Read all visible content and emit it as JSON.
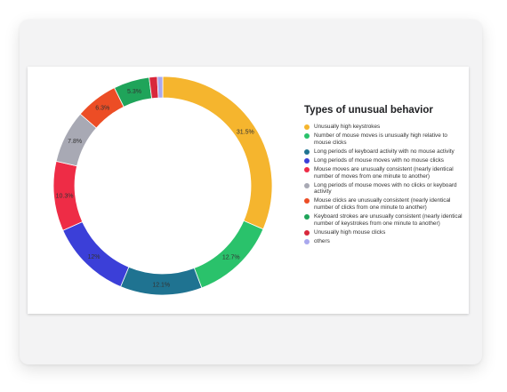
{
  "chart_data": {
    "type": "pie",
    "title": "Types of unusual behavior",
    "legend_position": "right",
    "series": [
      {
        "name": "Unusually high keystrokes",
        "value": 31.5,
        "label": "31.5%",
        "color": "#f5b52e"
      },
      {
        "name": "Number of mouse moves is unusually high relative to mouse clicks",
        "value": 12.7,
        "label": "12.7%",
        "color": "#2ac26b"
      },
      {
        "name": "Long periods of keyboard activity with no mouse activity",
        "value": 12.1,
        "label": "12.1%",
        "color": "#1f7391"
      },
      {
        "name": "Long periods of mouse moves with no mouse clicks",
        "value": 12,
        "label": "12%",
        "color": "#3b3fd8"
      },
      {
        "name": "Mouse moves are unusually consistent (nearly identical number of moves from one minute to another)",
        "value": 10.3,
        "label": "10.3%",
        "color": "#ee2c46"
      },
      {
        "name": "Long periods of mouse moves with no clicks or keyboard activity",
        "value": 7.8,
        "label": "7.8%",
        "color": "#a8a9b4"
      },
      {
        "name": "Mouse clicks are unusually consistent (nearly identical number of clicks from one minute to another)",
        "value": 6.3,
        "label": "6.3%",
        "color": "#ec4d25"
      },
      {
        "name": "Keyboard strokes are unusually consistent (nearly identical number of keystrokes from one minute to another)",
        "value": 5.3,
        "label": "5.3%",
        "color": "#1fa45a"
      },
      {
        "name": "Unusually high mouse clicks",
        "value": 1.2,
        "label": "",
        "color": "#d8283c"
      },
      {
        "name": "others",
        "value": 0.8,
        "label": "",
        "color": "#a9a8ee"
      }
    ]
  }
}
